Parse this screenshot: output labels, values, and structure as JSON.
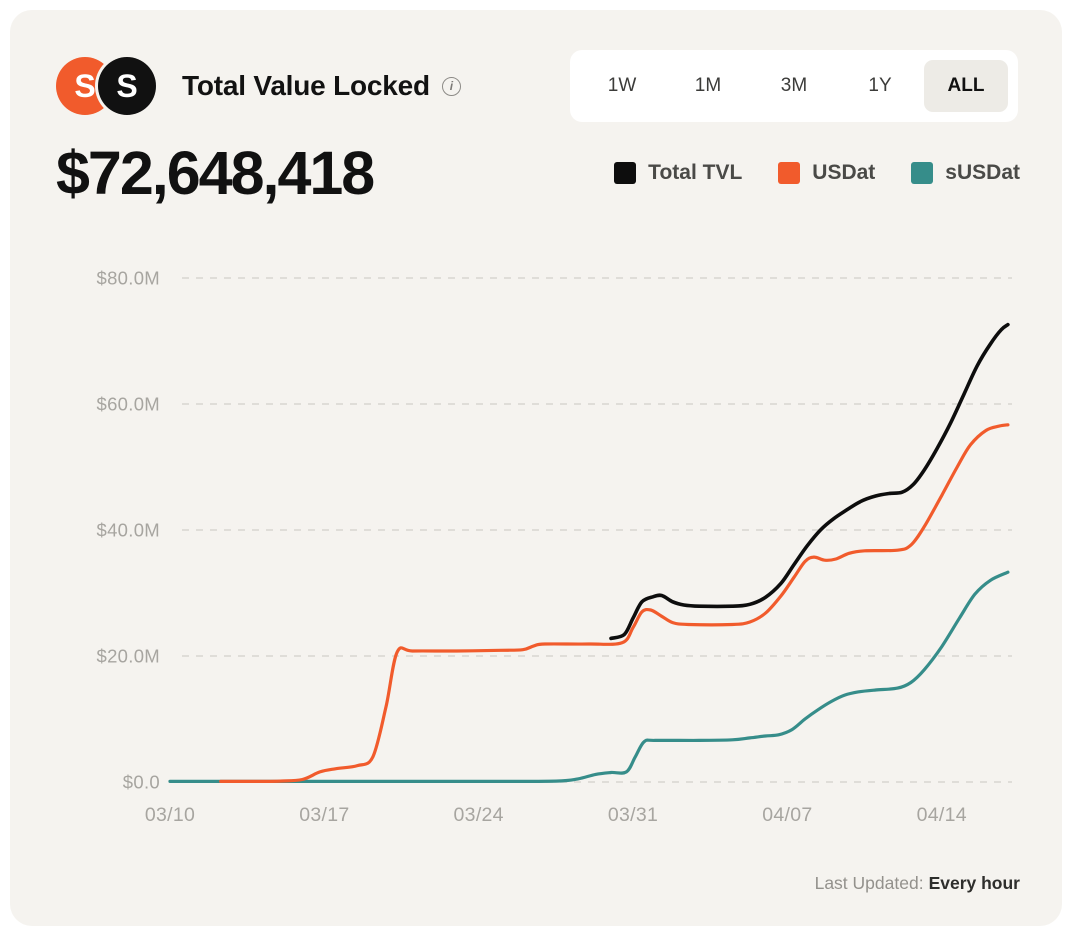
{
  "header": {
    "title": "Total Value Locked",
    "info_glyph": "i",
    "logos": [
      {
        "name": "usdat-logo",
        "glyph": "S",
        "bg": "#f15b2c"
      },
      {
        "name": "susdat-logo",
        "glyph": "S",
        "bg": "#111111"
      }
    ],
    "ranges": [
      {
        "label": "1W",
        "active": false
      },
      {
        "label": "1M",
        "active": false
      },
      {
        "label": "3M",
        "active": false
      },
      {
        "label": "1Y",
        "active": false
      },
      {
        "label": "ALL",
        "active": true
      }
    ]
  },
  "tvl_value": "$72,648,418",
  "legend": [
    {
      "label": "Total TVL",
      "color": "#0d0d0d"
    },
    {
      "label": "USDat",
      "color": "#f15b2c"
    },
    {
      "label": "sUSDat",
      "color": "#368d8a"
    }
  ],
  "footer": {
    "last_updated_label": "Last Updated:",
    "last_updated_value": "Every hour"
  },
  "chart_data": {
    "type": "line",
    "title": "Total Value Locked",
    "x_unit": "date (days after 03/10)",
    "y_unit": "USD millions",
    "xlim": [
      0,
      38
    ],
    "ylim": [
      0,
      85
    ],
    "grid": "dashed-horizontal",
    "legend_position": "top-right",
    "y_ticks": [
      {
        "value": 0,
        "label": "$0.0"
      },
      {
        "value": 20,
        "label": "$20.0M"
      },
      {
        "value": 40,
        "label": "$40.0M"
      },
      {
        "value": 60,
        "label": "$60.0M"
      },
      {
        "value": 80,
        "label": "$80.0M"
      }
    ],
    "x_ticks": [
      {
        "day": 0,
        "label": "03/10"
      },
      {
        "day": 7,
        "label": "03/17"
      },
      {
        "day": 14,
        "label": "03/24"
      },
      {
        "day": 21,
        "label": "03/31"
      },
      {
        "day": 28,
        "label": "04/07"
      },
      {
        "day": 35,
        "label": "04/14"
      }
    ],
    "series": [
      {
        "name": "Total TVL",
        "color": "#0d0d0d",
        "points": [
          [
            20,
            22.8
          ],
          [
            20.6,
            23.4
          ],
          [
            21,
            26.0
          ],
          [
            21.4,
            28.6
          ],
          [
            21.9,
            29.4
          ],
          [
            22.3,
            29.6
          ],
          [
            22.8,
            28.6
          ],
          [
            23.3,
            28.1
          ],
          [
            24,
            27.9
          ],
          [
            25.5,
            27.9
          ],
          [
            26.3,
            28.2
          ],
          [
            27,
            29.3
          ],
          [
            27.7,
            31.5
          ],
          [
            28.3,
            34.5
          ],
          [
            28.9,
            37.5
          ],
          [
            29.5,
            40.0
          ],
          [
            30.1,
            41.8
          ],
          [
            30.7,
            43.2
          ],
          [
            31.3,
            44.5
          ],
          [
            32,
            45.4
          ],
          [
            32.6,
            45.8
          ],
          [
            33.2,
            46.0
          ],
          [
            33.7,
            47.2
          ],
          [
            34.2,
            49.5
          ],
          [
            34.8,
            53.0
          ],
          [
            35.4,
            57.0
          ],
          [
            36,
            61.5
          ],
          [
            36.6,
            66.0
          ],
          [
            37.2,
            69.5
          ],
          [
            37.7,
            71.8
          ],
          [
            38,
            72.6
          ]
        ]
      },
      {
        "name": "USDat",
        "color": "#f15b2c",
        "points": [
          [
            2.3,
            0.1
          ],
          [
            4,
            0.1
          ],
          [
            5,
            0.15
          ],
          [
            6,
            0.4
          ],
          [
            6.8,
            1.6
          ],
          [
            7.5,
            2.1
          ],
          [
            8.5,
            2.6
          ],
          [
            9.2,
            4.0
          ],
          [
            9.8,
            12.0
          ],
          [
            10.3,
            20.6
          ],
          [
            11,
            20.8
          ],
          [
            13,
            20.8
          ],
          [
            15,
            20.9
          ],
          [
            16,
            21.0
          ],
          [
            16.5,
            21.6
          ],
          [
            17,
            21.9
          ],
          [
            19,
            21.9
          ],
          [
            20.5,
            22.1
          ],
          [
            21,
            24.5
          ],
          [
            21.4,
            27.0
          ],
          [
            21.8,
            27.3
          ],
          [
            22.3,
            26.3
          ],
          [
            22.8,
            25.3
          ],
          [
            23.5,
            25.0
          ],
          [
            25.5,
            25.0
          ],
          [
            26.3,
            25.4
          ],
          [
            27,
            26.8
          ],
          [
            27.7,
            29.5
          ],
          [
            28.3,
            32.5
          ],
          [
            28.8,
            35.0
          ],
          [
            29.2,
            35.7
          ],
          [
            29.7,
            35.2
          ],
          [
            30.2,
            35.4
          ],
          [
            30.8,
            36.3
          ],
          [
            31.5,
            36.7
          ],
          [
            33,
            36.8
          ],
          [
            33.6,
            37.6
          ],
          [
            34.2,
            40.5
          ],
          [
            35,
            45.5
          ],
          [
            35.7,
            50.0
          ],
          [
            36.3,
            53.5
          ],
          [
            37,
            55.8
          ],
          [
            37.6,
            56.5
          ],
          [
            38,
            56.7
          ]
        ]
      },
      {
        "name": "sUSDat",
        "color": "#368d8a",
        "points": [
          [
            0,
            0.1
          ],
          [
            4,
            0.1
          ],
          [
            9,
            0.1
          ],
          [
            14,
            0.1
          ],
          [
            17.5,
            0.15
          ],
          [
            18.5,
            0.5
          ],
          [
            19.3,
            1.2
          ],
          [
            20,
            1.5
          ],
          [
            20.7,
            1.6
          ],
          [
            21.1,
            4.0
          ],
          [
            21.5,
            6.4
          ],
          [
            22,
            6.6
          ],
          [
            24,
            6.6
          ],
          [
            25.5,
            6.7
          ],
          [
            26.3,
            7.0
          ],
          [
            27,
            7.3
          ],
          [
            27.6,
            7.5
          ],
          [
            28.2,
            8.3
          ],
          [
            28.8,
            10.0
          ],
          [
            29.4,
            11.5
          ],
          [
            30,
            12.8
          ],
          [
            30.6,
            13.8
          ],
          [
            31.2,
            14.3
          ],
          [
            32,
            14.6
          ],
          [
            33,
            14.9
          ],
          [
            33.6,
            15.8
          ],
          [
            34.2,
            17.8
          ],
          [
            35,
            21.5
          ],
          [
            35.8,
            26.0
          ],
          [
            36.5,
            29.8
          ],
          [
            37.2,
            32.0
          ],
          [
            38,
            33.3
          ]
        ]
      }
    ]
  }
}
